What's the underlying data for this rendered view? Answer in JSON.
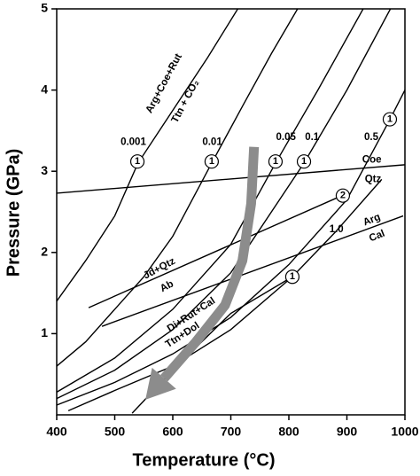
{
  "chart_data": {
    "type": "line",
    "xlabel": "Temperature (°C)",
    "ylabel": "Pressure (GPa)",
    "xlim": [
      400,
      1000
    ],
    "xticks": [
      400,
      500,
      600,
      700,
      800,
      900,
      1000
    ],
    "ylim": [
      0,
      5
    ],
    "yticks": [
      1,
      2,
      3,
      4,
      5
    ],
    "series": [
      {
        "color": "#000000",
        "x": [
          400,
          450,
          500,
          540,
          600,
          660,
          712
        ],
        "y": [
          1.4,
          1.9,
          2.45,
          3.1,
          3.75,
          4.4,
          5
        ]
      },
      {
        "color": "#000000",
        "x": [
          400,
          450,
          500,
          550,
          600,
          667,
          720,
          770,
          815
        ],
        "y": [
          0.6,
          0.9,
          1.3,
          1.7,
          2.2,
          3.1,
          3.8,
          4.45,
          5
        ]
      },
      {
        "color": "#000000",
        "x": [
          400,
          500,
          600,
          700,
          777,
          850,
          928
        ],
        "y": [
          0.28,
          0.7,
          1.3,
          2.1,
          3.1,
          4.0,
          5
        ]
      },
      {
        "color": "#000000",
        "x": [
          400,
          500,
          600,
          700,
          826,
          900,
          975
        ],
        "y": [
          0.2,
          0.55,
          1.05,
          1.75,
          3.1,
          4.0,
          5
        ]
      },
      {
        "color": "#000000",
        "x": [
          400,
          500,
          600,
          700,
          800,
          900,
          975,
          1000
        ],
        "y": [
          0.12,
          0.4,
          0.75,
          1.2,
          1.85,
          2.65,
          3.65,
          4.0
        ]
      },
      {
        "color": "#000000",
        "x": [
          420,
          500,
          600,
          700,
          806,
          880,
          960
        ],
        "y": [
          0.05,
          0.3,
          0.6,
          1.05,
          1.7,
          2.25,
          2.9
        ]
      },
      {
        "color": "#000000",
        "x": [
          530,
          600,
          700,
          806
        ],
        "y": [
          0.02,
          0.55,
          1.25,
          1.7
        ]
      },
      {
        "color": "#000000",
        "x": [
          400,
          1000
        ],
        "y": [
          2.73,
          3.08
        ]
      },
      {
        "color": "#000000",
        "x": [
          455,
          882
        ],
        "y": [
          1.32,
          2.67
        ]
      },
      {
        "color": "#000000",
        "x": [
          478,
          997
        ],
        "y": [
          1.09,
          2.45
        ]
      }
    ],
    "arrow": {
      "color": "#8c8c8c",
      "x": [
        740,
        735,
        720,
        690,
        640,
        585
      ],
      "y": [
        3.3,
        2.6,
        1.9,
        1.35,
        0.9,
        0.45
      ]
    },
    "annotations": [
      {
        "text": "0.001",
        "x": 532,
        "y": 3.36
      },
      {
        "text": "0.01",
        "x": 668,
        "y": 3.36
      },
      {
        "text": "0.05",
        "x": 795,
        "y": 3.42
      },
      {
        "text": "0.1",
        "x": 840,
        "y": 3.42
      },
      {
        "text": "0.5",
        "x": 942,
        "y": 3.42
      },
      {
        "text": "1.0",
        "x": 882,
        "y": 2.28
      },
      {
        "text": "Arg+Coe+Rut",
        "x": 585,
        "y": 4.08,
        "rotate": -62
      },
      {
        "text": "Ttn + CO₂",
        "x": 622,
        "y": 3.86,
        "rotate": -62
      },
      {
        "text": "Coe",
        "x": 943,
        "y": 3.14
      },
      {
        "text": "Qtz",
        "x": 945,
        "y": 2.9
      },
      {
        "text": "Jd+Qtz",
        "x": 577,
        "y": 1.8,
        "rotate": -28
      },
      {
        "text": "Ab",
        "x": 590,
        "y": 1.58,
        "rotate": -28
      },
      {
        "text": "Di+Rut+Cal",
        "x": 632,
        "y": 1.23,
        "rotate": -33
      },
      {
        "text": "Ttn+Dol",
        "x": 617,
        "y": 0.98,
        "rotate": -33
      },
      {
        "text": "Arg",
        "x": 943,
        "y": 2.4,
        "rotate": -22
      },
      {
        "text": "Cal",
        "x": 952,
        "y": 2.2,
        "rotate": -22
      },
      {
        "text": "1",
        "x": 539,
        "y": 3.12,
        "circle": true
      },
      {
        "text": "1",
        "x": 667,
        "y": 3.12,
        "circle": true
      },
      {
        "text": "1",
        "x": 777,
        "y": 3.12,
        "circle": true
      },
      {
        "text": "1",
        "x": 826,
        "y": 3.12,
        "circle": true
      },
      {
        "text": "1",
        "x": 974,
        "y": 3.64,
        "circle": true
      },
      {
        "text": "1",
        "x": 806,
        "y": 1.7,
        "circle": true
      },
      {
        "text": "2",
        "x": 893,
        "y": 2.7,
        "circle": true
      }
    ]
  }
}
